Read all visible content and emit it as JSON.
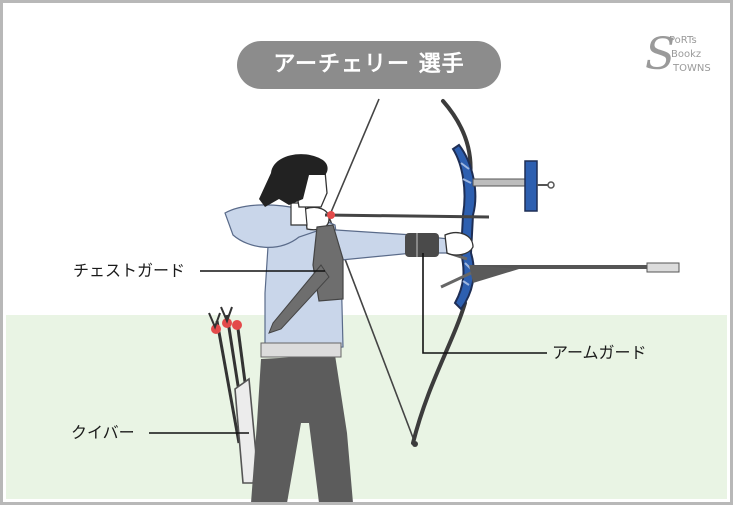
{
  "title": "アーチェリー 選手",
  "labels": {
    "chest_guard": "チェストガード",
    "arm_guard": "アームガード",
    "quiver": "クイバー"
  },
  "colors": {
    "title_pill": "#8c8c8c",
    "ground": "#e9f4e4",
    "shirt": "#c9d6ea",
    "riser": "#2d5fb0",
    "pants": "#5c5c5c",
    "guard": "#6e6e6e"
  }
}
